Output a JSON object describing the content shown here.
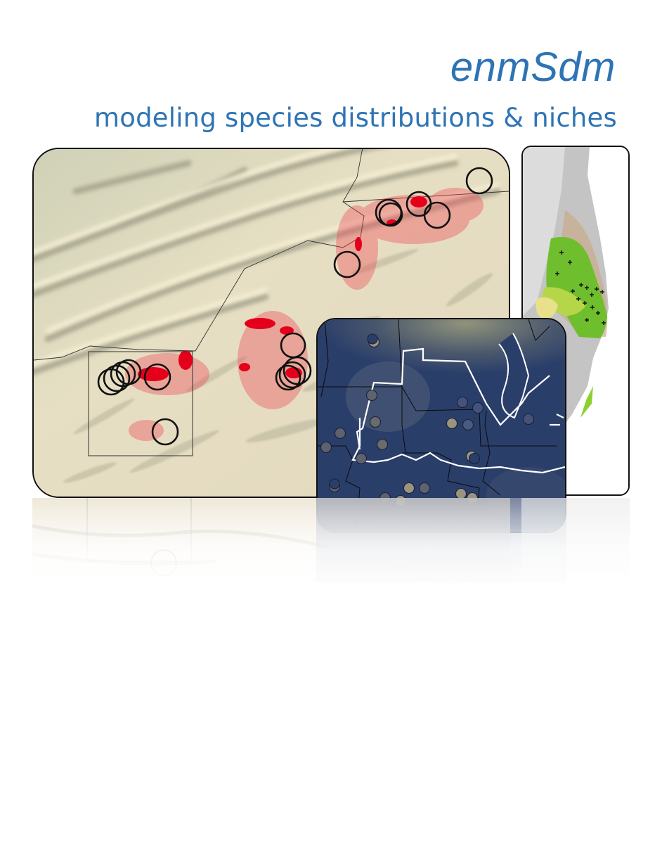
{
  "header": {
    "title": "enmSdm",
    "subtitle": "modeling species distributions & niches"
  },
  "icons": {
    "main_map": "shaded-relief-map-icon",
    "right_map": "suitability-map-icon",
    "inset_map": "occurrence-map-icon"
  },
  "colors": {
    "title": "#2e74b5",
    "relief_light": "#e7e0c4",
    "relief_shadow": "#a7a38c",
    "suitability_red": "#e4001b",
    "inset_background": "#2a3e6a",
    "inset_boundary": "#ffffff",
    "occurrence_points": "#9b9580",
    "right_map_green": "#6fbe2d"
  }
}
